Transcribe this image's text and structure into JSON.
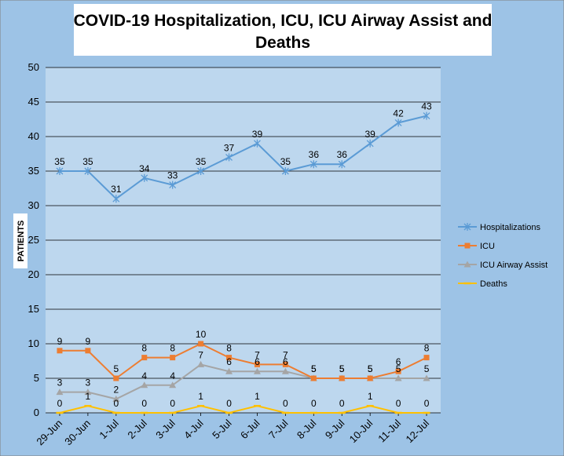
{
  "chart_data": {
    "type": "line",
    "title_lines": [
      "COVID-19 Hospitalization, ICU, ICU Airway Assist and",
      "Deaths"
    ],
    "xlabel": "",
    "ylabel": "PATIENTS",
    "ylim": [
      0,
      50
    ],
    "yticks": [
      0,
      5,
      10,
      15,
      20,
      25,
      30,
      35,
      40,
      45,
      50
    ],
    "grid": true,
    "legend_position": "right",
    "categories": [
      "29-Jun",
      "30-Jun",
      "1-Jul",
      "2-Jul",
      "3-Jul",
      "4-Jul",
      "5-Jul",
      "6-Jul",
      "7-Jul",
      "8-Jul",
      "9-Jul",
      "10-Jul",
      "11-Jul",
      "12-Jul"
    ],
    "series": [
      {
        "name": "Hospitalizations",
        "color": "#5b9bd5",
        "marker": "star",
        "values": [
          35,
          35,
          31,
          34,
          33,
          35,
          37,
          39,
          35,
          36,
          36,
          39,
          42,
          43
        ]
      },
      {
        "name": "ICU",
        "color": "#ed7d31",
        "marker": "square",
        "values": [
          9,
          9,
          5,
          8,
          8,
          10,
          8,
          7,
          7,
          5,
          5,
          5,
          6,
          8
        ]
      },
      {
        "name": "ICU Airway Assist",
        "color": "#a5a5a5",
        "marker": "triangle",
        "values": [
          3,
          3,
          2,
          4,
          4,
          7,
          6,
          6,
          6,
          5,
          5,
          5,
          5,
          5
        ]
      },
      {
        "name": "Deaths",
        "color": "#ffc000",
        "marker": "dash",
        "values": [
          0,
          1,
          0,
          0,
          0,
          1,
          0,
          1,
          0,
          0,
          0,
          1,
          0,
          0
        ]
      }
    ],
    "colors": {
      "page_background": "#9dc3e6",
      "plot_background": "#bdd7ee",
      "gridline": "#000000",
      "title_box": "#ffffff"
    }
  }
}
